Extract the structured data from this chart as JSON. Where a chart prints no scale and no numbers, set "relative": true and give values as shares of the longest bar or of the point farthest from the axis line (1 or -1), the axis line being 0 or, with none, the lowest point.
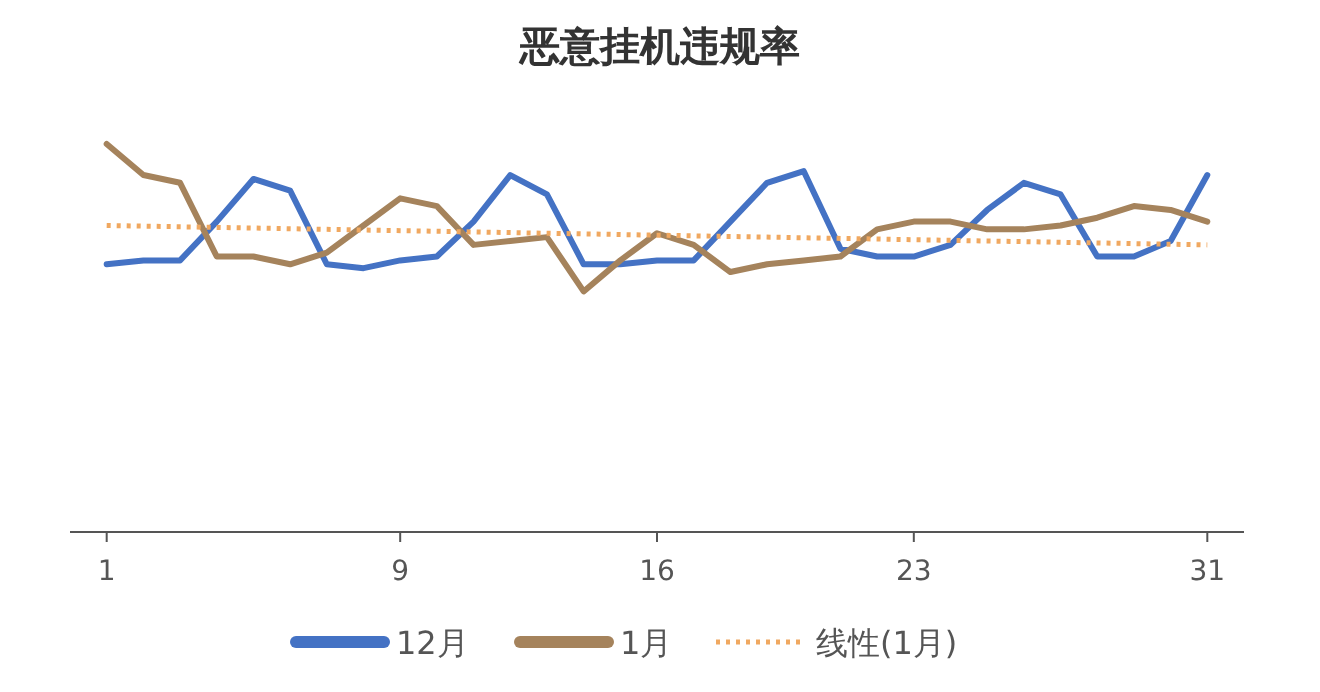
{
  "chart_data": {
    "type": "line",
    "title": "恶意挂机违规率",
    "relative": true,
    "xlim": [
      0,
      32
    ],
    "xticks": [
      1,
      9,
      16,
      23,
      31
    ],
    "legend": "bottom",
    "grid": false,
    "x": [
      1,
      2,
      3,
      4,
      5,
      6,
      7,
      8,
      9,
      10,
      11,
      12,
      13,
      14,
      15,
      16,
      17,
      18,
      19,
      20,
      21,
      22,
      23,
      24,
      25,
      26,
      27,
      28,
      29,
      30,
      31
    ],
    "series": [
      {
        "name": "12月",
        "color": "#4472c4",
        "values": [
          0.69,
          0.7,
          0.7,
          0.8,
          0.91,
          0.88,
          0.69,
          0.68,
          0.7,
          0.71,
          0.8,
          0.92,
          0.87,
          0.69,
          0.69,
          0.7,
          0.7,
          0.8,
          0.9,
          0.93,
          0.73,
          0.71,
          0.71,
          0.74,
          0.83,
          0.9,
          0.87,
          0.71,
          0.71,
          0.75,
          0.92
        ]
      },
      {
        "name": "1月",
        "color": "#a5835c",
        "values": [
          1,
          0.92,
          0.9,
          0.71,
          0.71,
          0.69,
          0.72,
          0.79,
          0.86,
          0.84,
          0.74,
          0.75,
          0.76,
          0.62,
          0.7,
          0.77,
          0.74,
          0.67,
          0.69,
          0.7,
          0.71,
          0.78,
          0.8,
          0.8,
          0.78,
          0.78,
          0.79,
          0.81,
          0.84,
          0.83,
          0.8
        ]
      },
      {
        "name": "线性(1月)",
        "color": "#f0a860",
        "line_style": "dotted",
        "x": [
          1,
          31
        ],
        "values": [
          0.79,
          0.74
        ]
      }
    ]
  }
}
